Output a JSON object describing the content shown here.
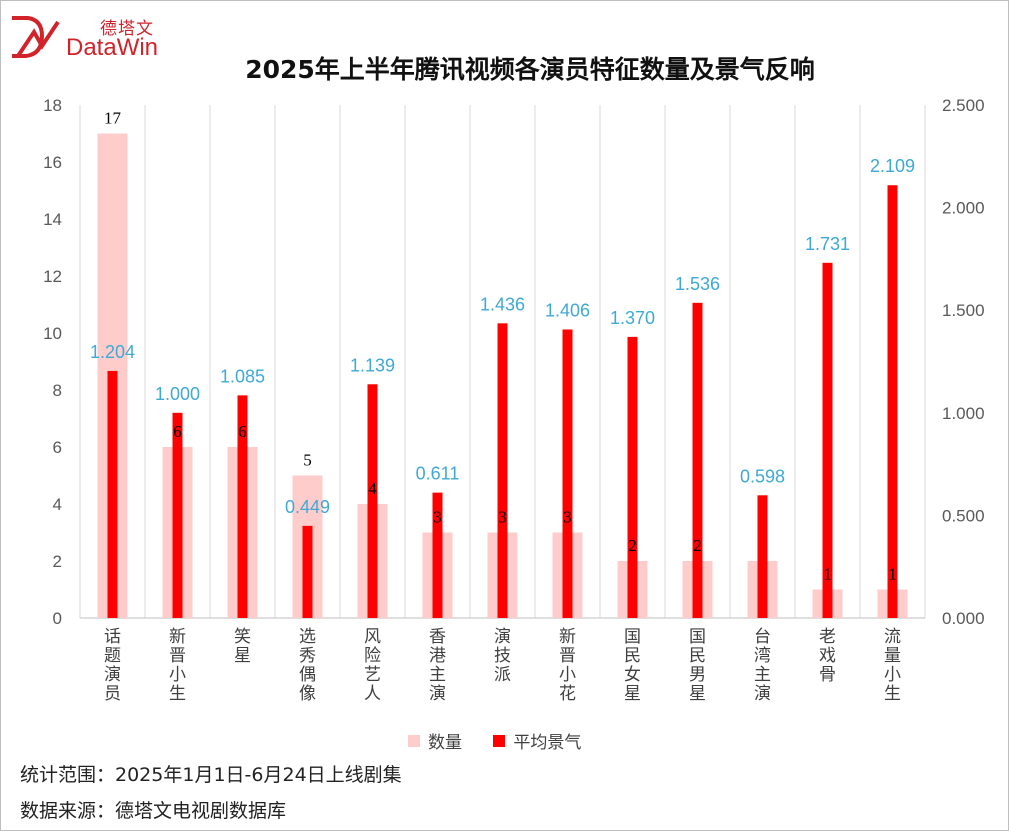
{
  "brand": {
    "cn": "德塔文",
    "en": "DataWin"
  },
  "colors": {
    "count_bar": "#ffcccc",
    "avg_bar": "#ff0000",
    "avg_label": "#3fa9d6",
    "brand": "#d2232a"
  },
  "chart_data": {
    "type": "bar",
    "title": "2025年上半年腾讯视频各演员特征数量及景气反响",
    "categories": [
      "话题演员",
      "新晋小生",
      "笑星",
      "选秀偶像",
      "风险艺人",
      "香港主演",
      "演技派",
      "新晋小花",
      "国民女星",
      "国民男星",
      "台湾主演",
      "老戏骨",
      "流量小生"
    ],
    "series": [
      {
        "name": "数量",
        "axis": "left",
        "values": [
          17,
          6,
          6,
          5,
          4,
          3,
          3,
          3,
          2,
          2,
          2,
          1,
          1
        ],
        "labels": [
          "17",
          "6",
          "6",
          "5",
          "4",
          "3",
          "3",
          "3",
          "2",
          "2",
          "",
          "1",
          "1"
        ]
      },
      {
        "name": "平均景气",
        "axis": "right",
        "values": [
          1.204,
          1.0,
          1.085,
          0.449,
          1.139,
          0.611,
          1.436,
          1.406,
          1.37,
          1.536,
          0.598,
          1.731,
          2.109
        ],
        "labels": [
          "1.204",
          "1.000",
          "1.085",
          "0.449",
          "1.139",
          "0.611",
          "1.436",
          "1.406",
          "1.370",
          "1.536",
          "0.598",
          "1.731",
          "2.109"
        ]
      }
    ],
    "y_left": {
      "min": 0,
      "max": 18,
      "ticks": [
        "0",
        "2",
        "4",
        "6",
        "8",
        "10",
        "12",
        "14",
        "16",
        "18"
      ]
    },
    "y_right": {
      "min": 0,
      "max": 2.5,
      "ticks": [
        "0.000",
        "0.500",
        "1.000",
        "1.500",
        "2.000",
        "2.500"
      ]
    },
    "legend": [
      "数量",
      "平均景气"
    ],
    "legend_position": "bottom",
    "grid": "vertical separators"
  },
  "notes": {
    "scope": "统计范围：2025年1月1日-6月24日上线剧集",
    "source": "数据来源：德塔文电视剧数据库"
  }
}
